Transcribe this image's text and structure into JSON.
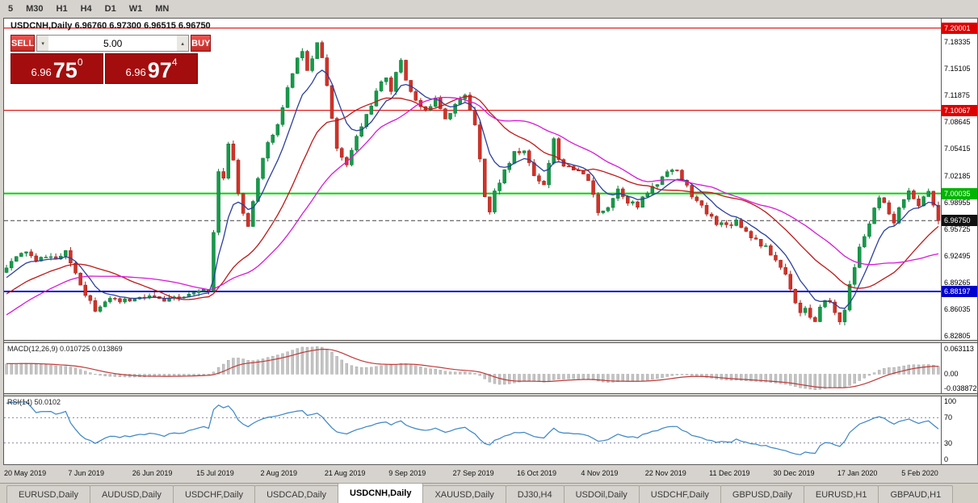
{
  "toolbar": {
    "timeframes": [
      "5",
      "M30",
      "H1",
      "H4",
      "D1",
      "W1",
      "MN"
    ]
  },
  "chart": {
    "title": "USDCNH,Daily 6.96760 6.97300 6.96515 6.96750",
    "symbol": "USDCNH,Daily",
    "ohlc": {
      "open": "6.96760",
      "high": "6.97300",
      "low": "6.96515",
      "close": "6.96750"
    }
  },
  "trade_panel": {
    "sell_label": "SELL",
    "buy_label": "BUY",
    "volume": "5.00",
    "volume_down_icon": "▾",
    "volume_up_icon": "▴",
    "sell_price": {
      "big": "6.96",
      "pips": "75",
      "pipette": "0"
    },
    "buy_price": {
      "big": "6.96",
      "pips": "97",
      "pipette": "4"
    }
  },
  "price_axis": {
    "scale_labels": [
      "7.18335",
      "7.15105",
      "7.11875",
      "7.08645",
      "7.05415",
      "7.02185",
      "6.98955",
      "6.95725",
      "6.92495",
      "6.89265",
      "6.86035",
      "6.82805"
    ],
    "level_labels": [
      {
        "value": "7.20001",
        "bg": "#dd0000",
        "fg": "#ffffff"
      },
      {
        "value": "7.10067",
        "bg": "#dd0000",
        "fg": "#ffffff"
      },
      {
        "value": "7.00035",
        "bg": "#00b400",
        "fg": "#ffffff"
      },
      {
        "value": "6.96750",
        "bg": "#111111",
        "fg": "#ffffff"
      },
      {
        "value": "6.88197",
        "bg": "#0000cc",
        "fg": "#ffffff"
      }
    ]
  },
  "macd_panel": {
    "label": "MACD(12,26,9) 0.010725 0.013869",
    "axis_top": "0.063113",
    "axis_zero": "0.00",
    "axis_bottom": "-0.038872"
  },
  "rsi_panel": {
    "label": "RSI(14) 50.0102",
    "axis": [
      "100",
      "70",
      "30",
      "0"
    ]
  },
  "tabs": {
    "active_index": 4,
    "items": [
      "EURUSD,Daily",
      "AUDUSD,Daily",
      "USDCHF,Daily",
      "USDCAD,Daily",
      "USDCNH,Daily",
      "XAUUSD,Daily",
      "DJ30,H4",
      "USDOil,Daily",
      "USDCHF,Daily",
      "GBPUSD,Daily",
      "EURUSD,H1",
      "GBPAUD,H1"
    ],
    "separator": ""
  },
  "chart_data": {
    "type": "candlestick",
    "symbol": "USDCNH",
    "timeframe": "Daily",
    "visible_bars": 190,
    "pre_bars": 60,
    "price_range": {
      "min": 6.8235,
      "max": 7.2115
    },
    "current_price": 6.9675,
    "current_price_line_color": "#444444",
    "up_color": "#169a4a",
    "up_border": "#0b7a36",
    "down_color": "#d23228",
    "down_border": "#a0211a",
    "levels": [
      {
        "price": 7.20001,
        "color": "#e00000",
        "width": 1.2
      },
      {
        "price": 7.10067,
        "color": "#e00000",
        "width": 1.2
      },
      {
        "price": 7.00035,
        "color": "#00d400",
        "width": 2
      },
      {
        "price": 6.88197,
        "color": "#0008d8",
        "width": 2
      }
    ],
    "ma": [
      {
        "period": 8,
        "type": "ema",
        "color": "#2b3f9e"
      },
      {
        "period": 21,
        "type": "sma",
        "color": "#c01818"
      },
      {
        "period": 34,
        "type": "sma",
        "color": "#d818d8"
      }
    ],
    "macd": {
      "fast": 12,
      "slow": 26,
      "signal": 9,
      "hist_color": "#c4c4c4",
      "hist_border": "#9e9e9e",
      "signal_color": "#c03838"
    },
    "rsi": {
      "period": 14,
      "color": "#3a85c6",
      "levels": [
        70,
        30
      ],
      "level_color": "#8888aa"
    },
    "noise": 0.0035,
    "wick": 0.0045,
    "seed": 11,
    "close_path": [
      [
        -60,
        6.715
      ],
      [
        -48,
        6.742
      ],
      [
        -36,
        6.775
      ],
      [
        -26,
        6.815
      ],
      [
        -16,
        6.862
      ],
      [
        -8,
        6.888
      ],
      [
        -2,
        6.902
      ],
      [
        0,
        6.913
      ],
      [
        2,
        6.922
      ],
      [
        4,
        6.931
      ],
      [
        6,
        6.917
      ],
      [
        8,
        6.926
      ],
      [
        10,
        6.921
      ],
      [
        12,
        6.928
      ],
      [
        14,
        6.905
      ],
      [
        16,
        6.88
      ],
      [
        18,
        6.861
      ],
      [
        20,
        6.872
      ],
      [
        23,
        6.869
      ],
      [
        26,
        6.872
      ],
      [
        29,
        6.876
      ],
      [
        32,
        6.87
      ],
      [
        35,
        6.874
      ],
      [
        38,
        6.879
      ],
      [
        41,
        6.885
      ],
      [
        42,
        6.955
      ],
      [
        43,
        7.028
      ],
      [
        44,
        7.018
      ],
      [
        45,
        7.058
      ],
      [
        46,
        7.042
      ],
      [
        47,
        7.0
      ],
      [
        48,
        6.976
      ],
      [
        49,
        6.962
      ],
      [
        50,
        6.988
      ],
      [
        51,
        7.018
      ],
      [
        52,
        7.046
      ],
      [
        54,
        7.072
      ],
      [
        56,
        7.102
      ],
      [
        58,
        7.148
      ],
      [
        60,
        7.175
      ],
      [
        61,
        7.152
      ],
      [
        62,
        7.165
      ],
      [
        63,
        7.186
      ],
      [
        64,
        7.165
      ],
      [
        65,
        7.128
      ],
      [
        66,
        7.092
      ],
      [
        67,
        7.058
      ],
      [
        68,
        7.042
      ],
      [
        69,
        7.035
      ],
      [
        71,
        7.068
      ],
      [
        73,
        7.095
      ],
      [
        75,
        7.122
      ],
      [
        77,
        7.142
      ],
      [
        78,
        7.126
      ],
      [
        80,
        7.162
      ],
      [
        81,
        7.138
      ],
      [
        83,
        7.112
      ],
      [
        85,
        7.098
      ],
      [
        87,
        7.118
      ],
      [
        89,
        7.092
      ],
      [
        91,
        7.108
      ],
      [
        93,
        7.118
      ],
      [
        95,
        7.085
      ],
      [
        96,
        7.045
      ],
      [
        97,
        6.998
      ],
      [
        98,
        6.978
      ],
      [
        99,
        7.002
      ],
      [
        101,
        7.028
      ],
      [
        103,
        7.048
      ],
      [
        105,
        7.052
      ],
      [
        107,
        7.022
      ],
      [
        109,
        7.012
      ],
      [
        110,
        7.038
      ],
      [
        111,
        7.068
      ],
      [
        112,
        7.042
      ],
      [
        114,
        7.03
      ],
      [
        116,
        7.026
      ],
      [
        118,
        7.018
      ],
      [
        119,
        6.996
      ],
      [
        120,
        6.976
      ],
      [
        122,
        6.986
      ],
      [
        124,
        7.006
      ],
      [
        126,
        6.992
      ],
      [
        128,
        6.984
      ],
      [
        130,
        7.002
      ],
      [
        132,
        7.012
      ],
      [
        134,
        7.03
      ],
      [
        136,
        7.026
      ],
      [
        138,
        7.008
      ],
      [
        140,
        6.99
      ],
      [
        142,
        6.976
      ],
      [
        144,
        6.966
      ],
      [
        146,
        6.962
      ],
      [
        148,
        6.968
      ],
      [
        150,
        6.955
      ],
      [
        152,
        6.944
      ],
      [
        154,
        6.934
      ],
      [
        156,
        6.92
      ],
      [
        158,
        6.903
      ],
      [
        159,
        6.887
      ],
      [
        160,
        6.87
      ],
      [
        161,
        6.856
      ],
      [
        162,
        6.864
      ],
      [
        163,
        6.85
      ],
      [
        164,
        6.843
      ],
      [
        165,
        6.86
      ],
      [
        166,
        6.874
      ],
      [
        167,
        6.868
      ],
      [
        168,
        6.856
      ],
      [
        169,
        6.846
      ],
      [
        170,
        6.862
      ],
      [
        171,
        6.888
      ],
      [
        172,
        6.912
      ],
      [
        173,
        6.934
      ],
      [
        174,
        6.95
      ],
      [
        175,
        6.964
      ],
      [
        176,
        6.98
      ],
      [
        177,
        6.994
      ],
      [
        178,
        6.986
      ],
      [
        179,
        6.972
      ],
      [
        180,
        6.966
      ],
      [
        181,
        6.98
      ],
      [
        182,
        6.996
      ],
      [
        183,
        7.006
      ],
      [
        184,
        6.992
      ],
      [
        185,
        6.984
      ],
      [
        186,
        6.998
      ],
      [
        187,
        7.004
      ],
      [
        188,
        6.986
      ],
      [
        189,
        6.9675
      ]
    ],
    "date_ticks": [
      [
        0,
        "20 May 2019"
      ],
      [
        13,
        "7 Jun 2019"
      ],
      [
        26,
        "26 Jun 2019"
      ],
      [
        39,
        "15 Jul 2019"
      ],
      [
        52,
        "2 Aug 2019"
      ],
      [
        65,
        "21 Aug 2019"
      ],
      [
        78,
        "9 Sep 2019"
      ],
      [
        91,
        "27 Sep 2019"
      ],
      [
        104,
        "16 Oct 2019"
      ],
      [
        117,
        "4 Nov 2019"
      ],
      [
        130,
        "22 Nov 2019"
      ],
      [
        143,
        "11 Dec 2019"
      ],
      [
        156,
        "30 Dec 2019"
      ],
      [
        169,
        "17 Jan 2020"
      ],
      [
        182,
        "5 Feb 2020"
      ]
    ]
  }
}
